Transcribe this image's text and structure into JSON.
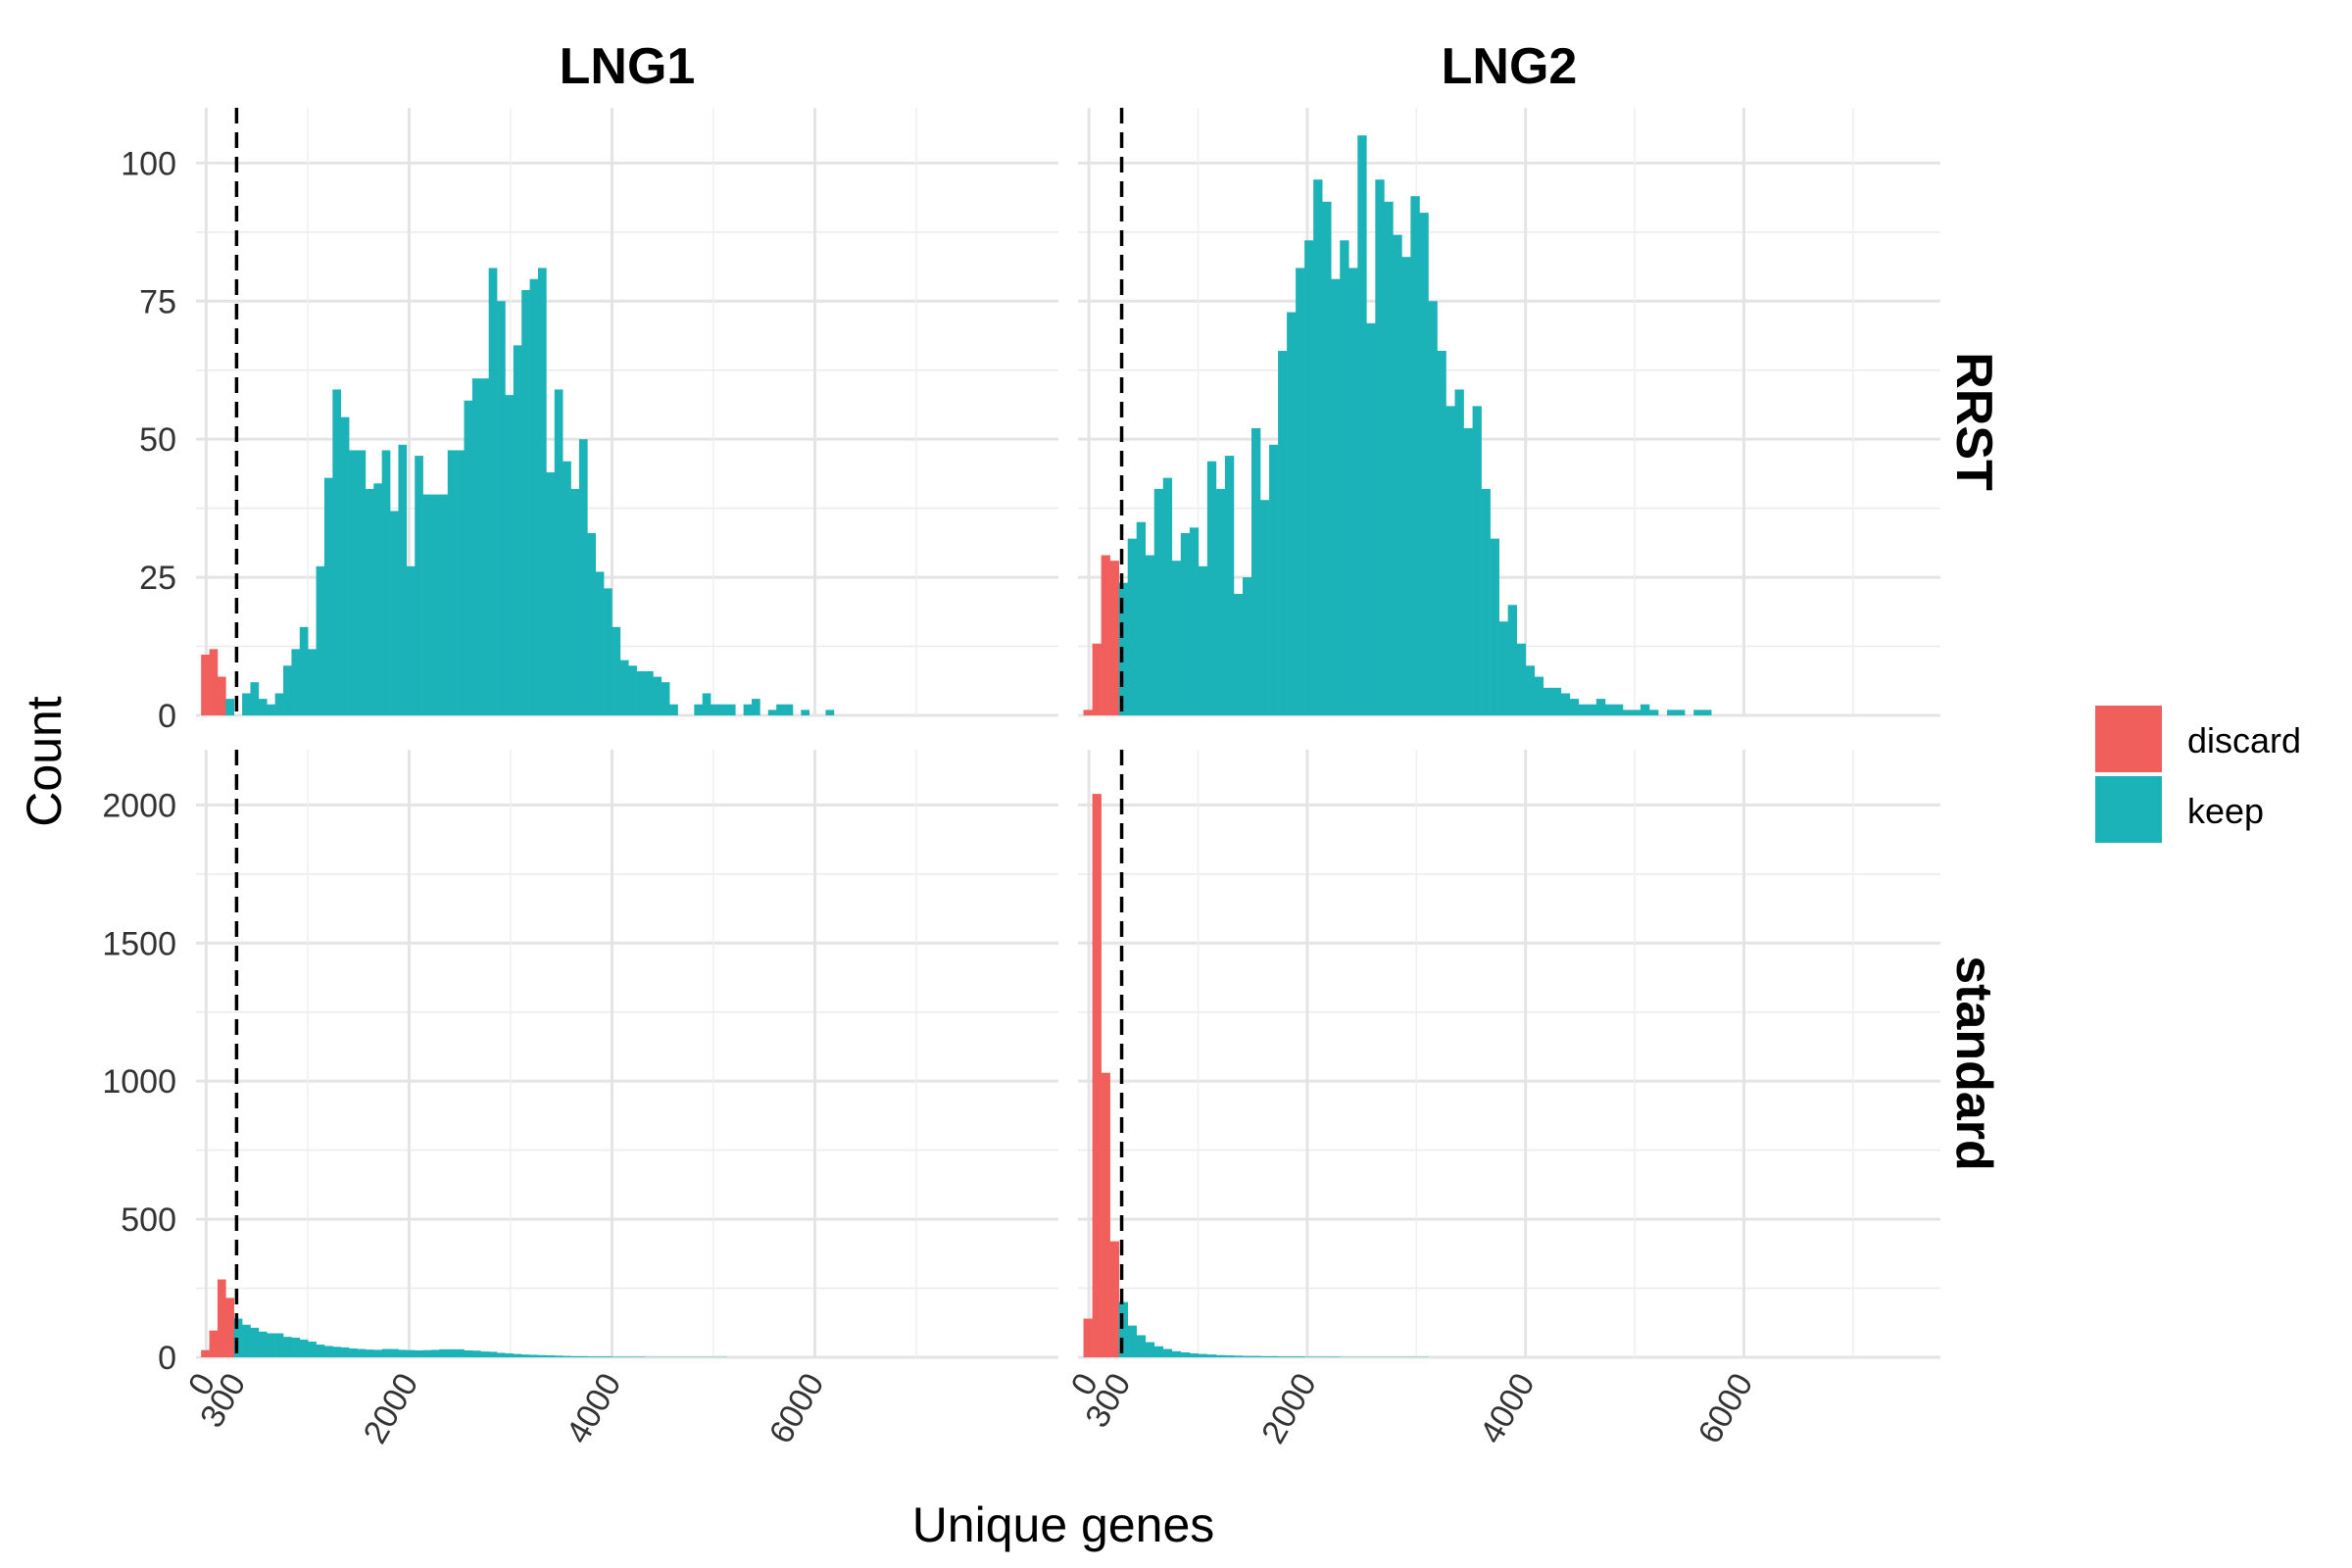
{
  "chart_data": {
    "type": "bar",
    "subtype": "faceted histogram",
    "ylabel": "Count",
    "xlabel": "Unique genes",
    "columns": [
      "LNG1",
      "LNG2"
    ],
    "rows": [
      "RRST",
      "standard"
    ],
    "x_ticks": [
      0,
      300,
      2000,
      4000,
      6000
    ],
    "threshold": 300,
    "threshold_style": "dashed vertical line",
    "grid": true,
    "legend": {
      "position": "right",
      "entries": [
        {
          "name": "discard",
          "color": "#F8766D"
        },
        {
          "name": "keep",
          "color": "#00BFC4"
        }
      ]
    },
    "colors": {
      "discard": "#F05F5B",
      "keep": "#1BB3B8"
    },
    "panels": [
      {
        "column": "LNG1",
        "row": "RRST",
        "xlim": [
          -100,
          8400
        ],
        "ylim": [
          0,
          110
        ],
        "y_ticks": [
          0,
          25,
          50,
          75,
          100
        ],
        "bin_start": -50,
        "bin_width": 81,
        "discard": [
          11,
          12,
          7
        ],
        "keep": [
          3,
          0,
          4,
          6,
          3,
          2,
          4,
          9,
          12,
          16,
          12,
          27,
          43,
          59,
          54,
          48,
          48,
          41,
          42,
          48,
          37,
          49,
          27,
          47,
          40,
          40,
          40,
          48,
          48,
          57,
          61,
          61,
          81,
          75,
          58,
          67,
          77,
          79,
          81,
          44,
          59,
          46,
          41,
          50,
          33,
          26,
          23,
          16,
          10,
          9,
          8,
          8,
          7,
          6,
          2,
          0,
          0,
          2,
          4,
          2,
          2,
          2,
          0,
          2,
          3,
          0,
          1,
          2,
          2,
          0,
          1,
          0,
          0,
          1
        ]
      },
      {
        "column": "LNG2",
        "row": "RRST",
        "xlim": [
          -100,
          7800
        ],
        "ylim": [
          0,
          110
        ],
        "y_ticks": [
          0,
          25,
          50,
          75,
          100
        ],
        "bin_start": -50,
        "bin_width": 81,
        "discard": [
          1,
          13,
          29,
          28
        ],
        "keep": [
          24,
          32,
          35,
          29,
          41,
          43,
          28,
          33,
          34,
          27,
          46,
          41,
          47,
          22,
          25,
          52,
          39,
          49,
          66,
          73,
          81,
          86,
          97,
          93,
          79,
          86,
          81,
          105,
          71,
          97,
          93,
          87,
          83,
          94,
          91,
          75,
          66,
          56,
          59,
          52,
          56,
          41,
          32,
          17,
          20,
          13,
          9,
          7,
          5,
          5,
          4,
          3,
          2,
          2,
          3,
          2,
          2,
          1,
          1,
          2,
          1,
          0,
          1,
          1,
          0,
          1,
          1,
          0,
          0,
          0
        ]
      },
      {
        "column": "LNG1",
        "row": "standard",
        "xlim": [
          -100,
          8400
        ],
        "ylim": [
          0,
          2200
        ],
        "y_ticks": [
          0,
          500,
          1000,
          1500,
          2000
        ],
        "bin_start": -50,
        "bin_width": 81,
        "discard": [
          26,
          97,
          282,
          215
        ],
        "keep": [
          140,
          118,
          107,
          93,
          87,
          87,
          74,
          71,
          64,
          57,
          46,
          41,
          38,
          36,
          32,
          30,
          28,
          27,
          30,
          30,
          27,
          26,
          25,
          26,
          27,
          29,
          29,
          29,
          25,
          24,
          21,
          20,
          16,
          14,
          12,
          10,
          9,
          8,
          7,
          6,
          5,
          4,
          4,
          3,
          3,
          3,
          2,
          2,
          2,
          2,
          1,
          1,
          1,
          1,
          1,
          1,
          1,
          1,
          1,
          1,
          0,
          0,
          0,
          0,
          0,
          0,
          0,
          0,
          0,
          0
        ]
      },
      {
        "column": "LNG2",
        "row": "standard",
        "xlim": [
          -100,
          7800
        ],
        "ylim": [
          0,
          2200
        ],
        "y_ticks": [
          0,
          500,
          1000,
          1500,
          2000
        ],
        "bin_start": -50,
        "bin_width": 81,
        "discard": [
          140,
          2040,
          1030,
          420
        ],
        "keep": [
          200,
          115,
          80,
          55,
          40,
          30,
          22,
          18,
          14,
          12,
          10,
          8,
          7,
          6,
          5,
          5,
          4,
          4,
          3,
          3,
          3,
          2,
          2,
          2,
          2,
          1,
          1,
          1,
          1,
          1,
          1,
          1,
          1,
          1,
          1,
          0,
          0,
          0,
          0,
          0,
          0,
          0,
          0,
          0,
          0,
          0,
          0,
          0,
          0,
          0
        ]
      }
    ]
  }
}
